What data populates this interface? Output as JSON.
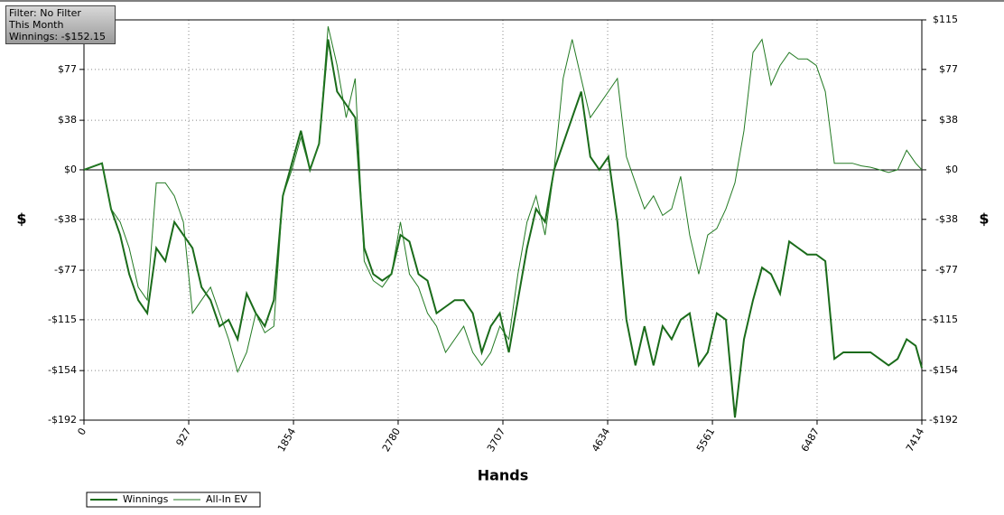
{
  "chart_data": {
    "type": "line",
    "info": [
      "Filter: No Filter",
      "This Month",
      "Winnings: -$152.15"
    ],
    "xlabel": "Hands",
    "ylabel": "$",
    "xlim": [
      0,
      7414
    ],
    "xticks": [
      0,
      927,
      1854,
      2780,
      3707,
      4634,
      5561,
      6487,
      7414
    ],
    "ylim": [
      -192,
      115
    ],
    "yticks": [
      {
        "value": 115,
        "label": "$115"
      },
      {
        "value": 77,
        "label": "$77"
      },
      {
        "value": 38,
        "label": "$38"
      },
      {
        "value": 0,
        "label": "$0"
      },
      {
        "value": -38,
        "label": "-$38"
      },
      {
        "value": -77,
        "label": "-$77"
      },
      {
        "value": -115,
        "label": "-$115"
      },
      {
        "value": -154,
        "label": "-$154"
      },
      {
        "value": -192,
        "label": "-$192"
      }
    ],
    "grid": true,
    "x": [
      0,
      160,
      240,
      320,
      400,
      480,
      560,
      640,
      720,
      800,
      880,
      960,
      1040,
      1120,
      1200,
      1280,
      1360,
      1440,
      1520,
      1600,
      1680,
      1760,
      1840,
      1920,
      2000,
      2080,
      2160,
      2240,
      2320,
      2400,
      2480,
      2560,
      2640,
      2720,
      2800,
      2880,
      2960,
      3040,
      3120,
      3200,
      3280,
      3360,
      3440,
      3520,
      3600,
      3680,
      3760,
      3840,
      3920,
      4000,
      4080,
      4160,
      4240,
      4320,
      4400,
      4480,
      4560,
      4640,
      4720,
      4800,
      4880,
      4960,
      5040,
      5120,
      5200,
      5280,
      5360,
      5440,
      5520,
      5600,
      5680,
      5760,
      5840,
      5920,
      6000,
      6080,
      6160,
      6240,
      6320,
      6400,
      6480,
      6560,
      6640,
      6720,
      6800,
      6880,
      6960,
      7040,
      7120,
      7200,
      7280,
      7360,
      7414
    ],
    "series": [
      {
        "name": "Winnings",
        "color": "#1a6b1a",
        "values": [
          0,
          5,
          -30,
          -50,
          -80,
          -100,
          -110,
          -60,
          -70,
          -40,
          -50,
          -60,
          -90,
          -100,
          -120,
          -115,
          -130,
          -95,
          -110,
          -120,
          -100,
          -20,
          5,
          30,
          0,
          20,
          100,
          60,
          50,
          40,
          -60,
          -80,
          -85,
          -80,
          -50,
          -55,
          -80,
          -85,
          -110,
          -105,
          -100,
          -100,
          -110,
          -140,
          -120,
          -110,
          -140,
          -100,
          -60,
          -30,
          -40,
          0,
          20,
          40,
          60,
          10,
          0,
          10,
          -40,
          -115,
          -150,
          -120,
          -150,
          -120,
          -130,
          -115,
          -110,
          -150,
          -140,
          -110,
          -115,
          -190,
          -130,
          -100,
          -75,
          -80,
          -95,
          -55,
          -60,
          -65,
          -65,
          -70,
          -145,
          -140,
          -140,
          -140,
          -140,
          -145,
          -150,
          -145,
          -130,
          -135,
          -152
        ]
      },
      {
        "name": "All-In EV",
        "color": "#237a23",
        "values": [
          0,
          5,
          -30,
          -40,
          -60,
          -90,
          -100,
          -10,
          -10,
          -20,
          -40,
          -110,
          -100,
          -90,
          -110,
          -130,
          -155,
          -140,
          -110,
          -125,
          -120,
          -20,
          0,
          25,
          0,
          20,
          110,
          80,
          40,
          70,
          -70,
          -85,
          -90,
          -80,
          -40,
          -80,
          -90,
          -110,
          -120,
          -140,
          -130,
          -120,
          -140,
          -150,
          -140,
          -120,
          -130,
          -80,
          -40,
          -20,
          -50,
          0,
          70,
          100,
          70,
          40,
          50,
          60,
          70,
          10,
          -10,
          -30,
          -20,
          -35,
          -30,
          -5,
          -50,
          -80,
          -50,
          -45,
          -30,
          -10,
          30,
          90,
          100,
          65,
          80,
          90,
          85,
          85,
          80,
          60,
          5,
          5,
          5,
          3,
          2,
          0,
          -2,
          0,
          15,
          5,
          0
        ]
      }
    ]
  }
}
